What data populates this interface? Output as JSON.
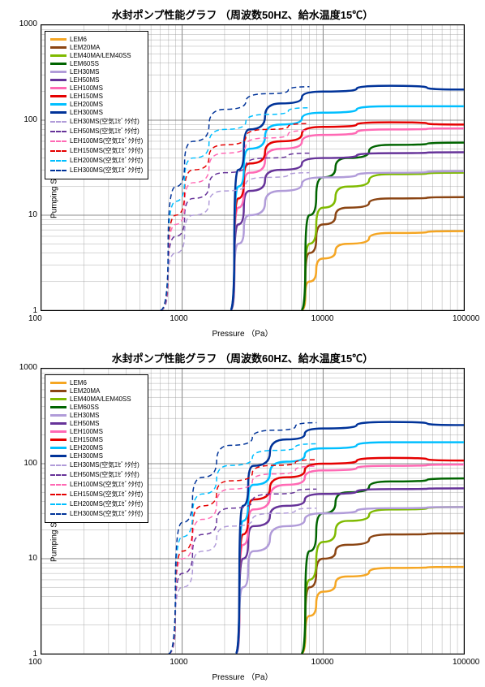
{
  "charts": [
    {
      "title": "水封ポンプ性能グラフ （周波数50HZ、給水温度15℃）",
      "xlabel": "Pressure （Pa）",
      "ylabel": "Pumping Speed （m³/h）",
      "xlim": [
        100,
        100000
      ],
      "ylim": [
        1,
        1000
      ],
      "xticks": [
        100,
        1000,
        10000,
        100000
      ],
      "yticks": [
        1,
        10,
        100,
        1000
      ],
      "background_color": "#ffffff",
      "grid_color": "#666666",
      "minor_grid_color": "#999999",
      "title_fontsize": 13,
      "label_fontsize": 10,
      "tick_fontsize": 10,
      "legend_fontsize": 8,
      "line_width_solid": 2.5,
      "line_width_dashed": 1.5,
      "series": [
        {
          "name": "LEM6",
          "color": "#f5a623",
          "dash": "solid",
          "points": [
            [
              7000,
              1
            ],
            [
              8000,
              2
            ],
            [
              10000,
              3.5
            ],
            [
              15000,
              5
            ],
            [
              30000,
              6.5
            ],
            [
              100000,
              6.8
            ]
          ]
        },
        {
          "name": "LEM20MA",
          "color": "#8b4513",
          "dash": "solid",
          "points": [
            [
              7000,
              1
            ],
            [
              8000,
              4
            ],
            [
              10000,
              8
            ],
            [
              15000,
              12
            ],
            [
              30000,
              15
            ],
            [
              100000,
              15.5
            ]
          ]
        },
        {
          "name": "LEM40MA/LEM40SS",
          "color": "#7fba00",
          "dash": "solid",
          "points": [
            [
              7000,
              1
            ],
            [
              8000,
              5
            ],
            [
              10000,
              12
            ],
            [
              15000,
              20
            ],
            [
              30000,
              27
            ],
            [
              100000,
              28
            ]
          ]
        },
        {
          "name": "LEM60SS",
          "color": "#006400",
          "dash": "solid",
          "points": [
            [
              7000,
              1
            ],
            [
              8000,
              10
            ],
            [
              10000,
              25
            ],
            [
              15000,
              40
            ],
            [
              30000,
              55
            ],
            [
              100000,
              58
            ]
          ]
        },
        {
          "name": "LEH30MS",
          "color": "#b19cd9",
          "dash": "solid",
          "points": [
            [
              2200,
              1
            ],
            [
              2500,
              5
            ],
            [
              3000,
              10
            ],
            [
              5000,
              18
            ],
            [
              10000,
              25
            ],
            [
              30000,
              28
            ],
            [
              100000,
              29
            ]
          ]
        },
        {
          "name": "LEH50MS",
          "color": "#663399",
          "dash": "solid",
          "points": [
            [
              2200,
              1
            ],
            [
              2500,
              8
            ],
            [
              3000,
              18
            ],
            [
              5000,
              30
            ],
            [
              10000,
              40
            ],
            [
              30000,
              45
            ],
            [
              100000,
              46
            ]
          ]
        },
        {
          "name": "LEH100MS",
          "color": "#ff69b4",
          "dash": "solid",
          "points": [
            [
              2200,
              1
            ],
            [
              2500,
              12
            ],
            [
              3000,
              28
            ],
            [
              5000,
              50
            ],
            [
              10000,
              70
            ],
            [
              30000,
              80
            ],
            [
              100000,
              82
            ]
          ]
        },
        {
          "name": "LEH150MS",
          "color": "#e50000",
          "dash": "solid",
          "points": [
            [
              2200,
              1
            ],
            [
              2500,
              15
            ],
            [
              3000,
              35
            ],
            [
              5000,
              60
            ],
            [
              10000,
              85
            ],
            [
              30000,
              95
            ],
            [
              100000,
              90
            ]
          ]
        },
        {
          "name": "LEH200MS",
          "color": "#00bfff",
          "dash": "solid",
          "points": [
            [
              2200,
              1
            ],
            [
              2500,
              20
            ],
            [
              3000,
              50
            ],
            [
              5000,
              90
            ],
            [
              10000,
              120
            ],
            [
              30000,
              140
            ],
            [
              100000,
              140
            ]
          ]
        },
        {
          "name": "LEH300MS",
          "color": "#003399",
          "dash": "solid",
          "points": [
            [
              2200,
              1
            ],
            [
              2500,
              30
            ],
            [
              3000,
              80
            ],
            [
              5000,
              150
            ],
            [
              10000,
              200
            ],
            [
              30000,
              230
            ],
            [
              100000,
              210
            ]
          ]
        },
        {
          "name": "LEH30MS(空気ｴｾﾞｸﾀ付)",
          "color": "#b19cd9",
          "dash": "dashed",
          "points": [
            [
              700,
              1
            ],
            [
              900,
              4
            ],
            [
              1200,
              10
            ],
            [
              2000,
              18
            ],
            [
              4000,
              25
            ],
            [
              8000,
              28
            ]
          ]
        },
        {
          "name": "LEH50MS(空気ｴｾﾞｸﾀ付)",
          "color": "#663399",
          "dash": "dashed",
          "points": [
            [
              700,
              1
            ],
            [
              900,
              6
            ],
            [
              1200,
              15
            ],
            [
              2000,
              28
            ],
            [
              4000,
              40
            ],
            [
              8000,
              45
            ]
          ]
        },
        {
          "name": "LEH100MS(空気ｴｾﾞｸﾀ付)",
          "color": "#ff69b4",
          "dash": "dashed",
          "points": [
            [
              700,
              1
            ],
            [
              900,
              8
            ],
            [
              1200,
              22
            ],
            [
              2000,
              45
            ],
            [
              4000,
              65
            ],
            [
              8000,
              78
            ]
          ]
        },
        {
          "name": "LEH150MS(空気ｴｾﾞｸﾀ付)",
          "color": "#e50000",
          "dash": "dashed",
          "points": [
            [
              700,
              1
            ],
            [
              900,
              10
            ],
            [
              1200,
              30
            ],
            [
              2000,
              55
            ],
            [
              4000,
              80
            ],
            [
              8000,
              92
            ]
          ]
        },
        {
          "name": "LEH200MS(空気ｴｾﾞｸﾀ付)",
          "color": "#00bfff",
          "dash": "dashed",
          "points": [
            [
              700,
              1
            ],
            [
              900,
              14
            ],
            [
              1200,
              40
            ],
            [
              2000,
              80
            ],
            [
              4000,
              115
            ],
            [
              8000,
              135
            ]
          ]
        },
        {
          "name": "LEH300MS(空気ｴｾﾞｸﾀ付)",
          "color": "#003399",
          "dash": "dashed",
          "points": [
            [
              700,
              1
            ],
            [
              900,
              20
            ],
            [
              1200,
              60
            ],
            [
              2000,
              130
            ],
            [
              4000,
              190
            ],
            [
              8000,
              225
            ]
          ]
        }
      ]
    },
    {
      "title": "水封ポンプ性能グラフ （周波数60HZ、給水温度15℃）",
      "xlabel": "Pressure （Pa）",
      "ylabel": "Pumping Speed （m³/h）",
      "xlim": [
        100,
        100000
      ],
      "ylim": [
        1,
        1000
      ],
      "xticks": [
        100,
        1000,
        10000,
        100000
      ],
      "yticks": [
        1,
        10,
        100,
        1000
      ],
      "background_color": "#ffffff",
      "grid_color": "#666666",
      "minor_grid_color": "#999999",
      "title_fontsize": 13,
      "label_fontsize": 10,
      "tick_fontsize": 10,
      "legend_fontsize": 8,
      "line_width_solid": 2.5,
      "line_width_dashed": 1.5,
      "series": [
        {
          "name": "LEM6",
          "color": "#f5a623",
          "dash": "solid",
          "points": [
            [
              7000,
              1
            ],
            [
              8000,
              2.5
            ],
            [
              10000,
              4.5
            ],
            [
              15000,
              6.5
            ],
            [
              30000,
              8
            ],
            [
              100000,
              8.2
            ]
          ]
        },
        {
          "name": "LEM20MA",
          "color": "#8b4513",
          "dash": "solid",
          "points": [
            [
              7000,
              1
            ],
            [
              8000,
              5
            ],
            [
              10000,
              10
            ],
            [
              15000,
              14
            ],
            [
              30000,
              18
            ],
            [
              100000,
              18.5
            ]
          ]
        },
        {
          "name": "LEM40MA/LEM40SS",
          "color": "#7fba00",
          "dash": "solid",
          "points": [
            [
              7000,
              1
            ],
            [
              8000,
              6
            ],
            [
              10000,
              15
            ],
            [
              15000,
              25
            ],
            [
              30000,
              33
            ],
            [
              100000,
              35
            ]
          ]
        },
        {
          "name": "LEM60SS",
          "color": "#006400",
          "dash": "solid",
          "points": [
            [
              7000,
              1
            ],
            [
              8000,
              12
            ],
            [
              10000,
              30
            ],
            [
              15000,
              50
            ],
            [
              30000,
              65
            ],
            [
              100000,
              70
            ]
          ]
        },
        {
          "name": "LEH30MS",
          "color": "#b19cd9",
          "dash": "solid",
          "points": [
            [
              2400,
              1
            ],
            [
              2700,
              5
            ],
            [
              3200,
              12
            ],
            [
              5500,
              22
            ],
            [
              10000,
              30
            ],
            [
              30000,
              34
            ],
            [
              100000,
              35
            ]
          ]
        },
        {
          "name": "LEH50MS",
          "color": "#663399",
          "dash": "solid",
          "points": [
            [
              2400,
              1
            ],
            [
              2700,
              10
            ],
            [
              3200,
              22
            ],
            [
              5500,
              36
            ],
            [
              10000,
              48
            ],
            [
              30000,
              54
            ],
            [
              100000,
              55
            ]
          ]
        },
        {
          "name": "LEH100MS",
          "color": "#ff69b4",
          "dash": "solid",
          "points": [
            [
              2400,
              1
            ],
            [
              2700,
              14
            ],
            [
              3200,
              33
            ],
            [
              5500,
              60
            ],
            [
              10000,
              85
            ],
            [
              30000,
              95
            ],
            [
              100000,
              98
            ]
          ]
        },
        {
          "name": "LEH150MS",
          "color": "#e50000",
          "dash": "solid",
          "points": [
            [
              2400,
              1
            ],
            [
              2700,
              18
            ],
            [
              3200,
              42
            ],
            [
              5500,
              72
            ],
            [
              10000,
              100
            ],
            [
              30000,
              115
            ],
            [
              100000,
              108
            ]
          ]
        },
        {
          "name": "LEH200MS",
          "color": "#00bfff",
          "dash": "solid",
          "points": [
            [
              2400,
              1
            ],
            [
              2700,
              25
            ],
            [
              3200,
              60
            ],
            [
              5500,
              105
            ],
            [
              10000,
              145
            ],
            [
              30000,
              168
            ],
            [
              100000,
              168
            ]
          ]
        },
        {
          "name": "LEH300MS",
          "color": "#003399",
          "dash": "solid",
          "points": [
            [
              2400,
              1
            ],
            [
              2700,
              36
            ],
            [
              3200,
              95
            ],
            [
              5500,
              180
            ],
            [
              10000,
              235
            ],
            [
              30000,
              275
            ],
            [
              100000,
              255
            ]
          ]
        },
        {
          "name": "LEH30MS(空気ｴｾﾞｸﾀ付)",
          "color": "#b19cd9",
          "dash": "dashed",
          "points": [
            [
              800,
              1
            ],
            [
              1000,
              5
            ],
            [
              1400,
              12
            ],
            [
              2200,
              22
            ],
            [
              4500,
              30
            ],
            [
              9000,
              34
            ]
          ]
        },
        {
          "name": "LEH50MS(空気ｴｾﾞｸﾀ付)",
          "color": "#663399",
          "dash": "dashed",
          "points": [
            [
              800,
              1
            ],
            [
              1000,
              7
            ],
            [
              1400,
              18
            ],
            [
              2200,
              34
            ],
            [
              4500,
              48
            ],
            [
              9000,
              54
            ]
          ]
        },
        {
          "name": "LEH100MS(空気ｴｾﾞｸﾀ付)",
          "color": "#ff69b4",
          "dash": "dashed",
          "points": [
            [
              800,
              1
            ],
            [
              1000,
              10
            ],
            [
              1400,
              26
            ],
            [
              2200,
              54
            ],
            [
              4500,
              78
            ],
            [
              9000,
              94
            ]
          ]
        },
        {
          "name": "LEH150MS(空気ｴｾﾞｸﾀ付)",
          "color": "#e50000",
          "dash": "dashed",
          "points": [
            [
              800,
              1
            ],
            [
              1000,
              12
            ],
            [
              1400,
              36
            ],
            [
              2200,
              66
            ],
            [
              4500,
              96
            ],
            [
              9000,
              110
            ]
          ]
        },
        {
          "name": "LEH200MS(空気ｴｾﾞｸﾀ付)",
          "color": "#00bfff",
          "dash": "dashed",
          "points": [
            [
              800,
              1
            ],
            [
              1000,
              17
            ],
            [
              1400,
              48
            ],
            [
              2200,
              96
            ],
            [
              4500,
              138
            ],
            [
              9000,
              162
            ]
          ]
        },
        {
          "name": "LEH300MS(空気ｴｾﾞｸﾀ付)",
          "color": "#003399",
          "dash": "dashed",
          "points": [
            [
              800,
              1
            ],
            [
              1000,
              24
            ],
            [
              1400,
              72
            ],
            [
              2200,
              156
            ],
            [
              4500,
              225
            ],
            [
              9000,
              270
            ]
          ]
        }
      ]
    }
  ]
}
